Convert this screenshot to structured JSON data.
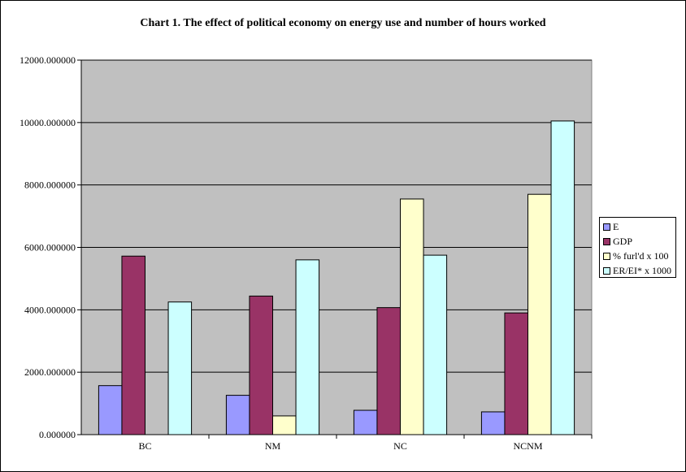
{
  "chart_data": {
    "type": "bar",
    "title": "Chart 1.  The effect of political economy on energy use and number of hours worked",
    "categories": [
      "BC",
      "NM",
      "NC",
      "NCNM"
    ],
    "series": [
      {
        "name": "E",
        "color": "#9999ff",
        "values": [
          1570,
          1260,
          780,
          730
        ]
      },
      {
        "name": "GDP",
        "color": "#993366",
        "values": [
          5720,
          4440,
          4070,
          3900
        ]
      },
      {
        "name": "% furl'd x 100",
        "color": "#ffffcc",
        "values": [
          0,
          600,
          7550,
          7700
        ]
      },
      {
        "name": "ER/EI* x 1000",
        "color": "#ccffff",
        "values": [
          4250,
          5600,
          5750,
          10050
        ]
      }
    ],
    "ylim": [
      0,
      12000
    ],
    "yticks": [
      0,
      2000,
      4000,
      6000,
      8000,
      10000,
      12000
    ],
    "ytick_labels": [
      "0.000000",
      "2000.000000",
      "4000.000000",
      "6000.000000",
      "8000.000000",
      "10000.000000",
      "12000.000000"
    ],
    "grid": true,
    "plot_background": "#c0c0c0",
    "legend_position": "right",
    "xlabel": "",
    "ylabel": ""
  }
}
